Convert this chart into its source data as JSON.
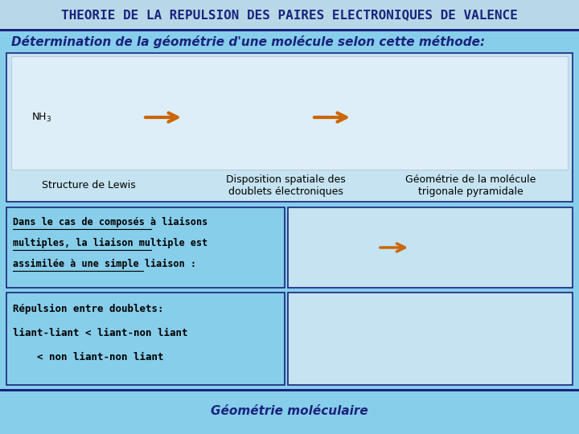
{
  "title": "THEORIE DE LA REPULSION DES PAIRES ELECTRONIQUES DE VALENCE",
  "title_color": "#1a237e",
  "title_bg": "#b8d8e8",
  "subtitle": "Détermination de la géométrie d'une molécule selon cette méthode:",
  "subtitle_color": "#1a237e",
  "bg_color": "#87CEEB",
  "box1_label1": "Structure de Lewis",
  "box1_label2": "Disposition spatiale des\ndoublets électroniques",
  "box1_label3": "Géométrie de la molécule\ntrigonale pyramidale",
  "box2_line1": "Dans le cas de composés à liaisons",
  "box2_line2": "multiples, la liaison multiple est",
  "box2_line3": "assimilée à une simple liaison :",
  "box3_line1": "Répulsion entre doublets:",
  "box3_line2": "liant-liant < liant-non liant",
  "box3_line3": "    < non liant-non liant",
  "footer": "Géométrie moléculaire",
  "footer_color": "#1a237e",
  "dark_blue": "#1a237e",
  "header_bg": "#b8d8e8",
  "inner_box_bg": "#ddeeff",
  "arrow_color": "#cc6600",
  "text_color": "#111111"
}
